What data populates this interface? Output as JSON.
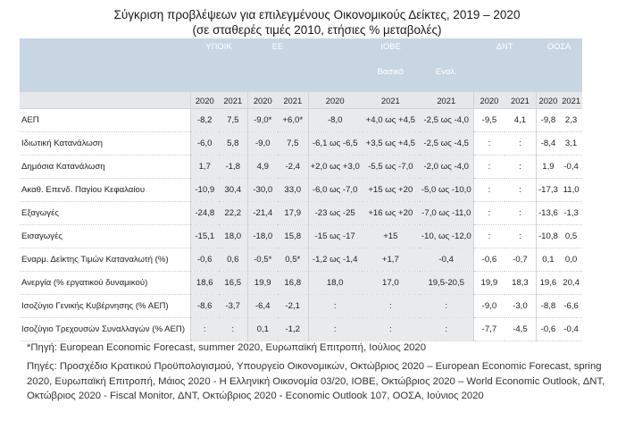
{
  "title": "Σύγκριση προβλέψεων για επιλεγμένους Οικονομικούς Δείκτες, 2019 – 2020",
  "subtitle": "(σε σταθερές τιμές 2010, ετήσιες % μεταβολές)",
  "table": {
    "groups": [
      "ΥΠΟΙΚ",
      "ΕΕ",
      "ΙΟΒΕ",
      "ΔΝΤ",
      "ΟΟΣΑ"
    ],
    "iobe_sub": [
      "Βασικό",
      "Εναλ."
    ],
    "years": [
      "2020",
      "2021",
      "2020",
      "2021",
      "2020",
      "2021",
      "2021",
      "2020",
      "2021",
      "2020",
      "2021"
    ],
    "rows": [
      {
        "label": "ΑΕΠ",
        "values": [
          "-8,2",
          "7,5",
          "-9,0*",
          "+6,0*",
          "-8,0",
          "+4,0 ως +4,5",
          "-2,5 ως -4,0",
          "-9,5",
          "4,1",
          "-9,8",
          "2,3"
        ]
      },
      {
        "label": "Ιδιωτική Κατανάλωση",
        "values": [
          "-6,0",
          "5,8",
          "-9,0",
          "7,5",
          "-6,1 ως -6,5",
          "+3,5 ως +4,5",
          "-2,5 ως -4,5",
          ":",
          ":",
          "-8,4",
          "3,1"
        ]
      },
      {
        "label": "Δημόσια Κατανάλωση",
        "values": [
          "1,7",
          "-1,8",
          "4,9",
          "-2,4",
          "+2,0 ως +3,0",
          "-5,5 ως -7,0",
          "-2,0 ως -4,0",
          ":",
          ":",
          "1,9",
          "-0,4"
        ]
      },
      {
        "label": "Ακαθ. Επενδ. Παγίου Κεφαλαίου",
        "values": [
          "-10,9",
          "30,4",
          "-30,0",
          "33,0",
          "-6,0 ως -7,0",
          "+15 ως +20",
          "-5,0 ως -10,0",
          ":",
          ":",
          "-17,3",
          "11,0"
        ]
      },
      {
        "label": "Εξαγωγές",
        "values": [
          "-24,8",
          "22,2",
          "-21,4",
          "17,9",
          "-23 ως -25",
          "+16 ως +20",
          "-7,0 ως -11,0",
          ":",
          ":",
          "-13,6",
          "-1,3"
        ]
      },
      {
        "label": "Εισαγωγές",
        "values": [
          "-15,1",
          "18,0",
          "-18,0",
          "15,8",
          "-15 ως -17",
          "+15",
          "-10, ως -12,0",
          ":",
          ":",
          "-10,8",
          "0,5"
        ]
      },
      {
        "label": "Εναρμ. Δείκτης Τιμών Καταναλωτή (%)",
        "values": [
          "-0,6",
          "0,6",
          "-0,5*",
          "0,5*",
          "-1,2 ως -1,4",
          "+1,7",
          "-0,4",
          "-0,6",
          "-0,7",
          "0,1",
          "0,0"
        ]
      },
      {
        "label": "Ανεργία (% εργατικού δυναμικού)",
        "values": [
          "18,6",
          "16,5",
          "19,9",
          "16,8",
          "18,0",
          "17,0",
          "19,5-20,5",
          "19,9",
          "18,3",
          "19,6",
          "20,4"
        ]
      },
      {
        "label": "Ισοζύγιο Γενικής Κυβέρνησης (% ΑΕΠ)",
        "values": [
          "-8,6",
          "-3,7",
          "-6,4",
          "-2,1",
          ":",
          ":",
          ":",
          "-9,0",
          "-3,0",
          "-8,8",
          "-6,6"
        ]
      },
      {
        "label": "Ισοζύγιο Τρεχουσών Συναλλαγών (% ΑΕΠ)",
        "values": [
          ":",
          ":",
          "0,1",
          "-1,2",
          ":",
          ":",
          ":",
          "-7,7",
          "-4,5",
          "-0,6",
          "-0,4"
        ]
      }
    ]
  },
  "notes": {
    "footnote": "*Πηγή: European Economic Forecast, summer 2020, Ευρωπαϊκή Επιτροπή, Ιούλιος 2020",
    "sources": "Πηγές: Προσχέδιο Κρατικού Προϋπολογισμού, Υπουργείο Οικονομικών, Οκτώβριος 2020 – European Economic Forecast, spring 2020, Ευρωπαϊκή Επιτροπή, Μάιος 2020 - Η Ελληνική Οικονομία 03/20, ΙΟΒΕ, Οκτώβριος 2020 – World Economic Outlook, ΔΝΤ, Οκτώβριος 2020 - Fiscal Monitor, ΔΝΤ, Οκτώβριος 2020 - Economic Outlook 107, ΟΟΣΑ, Ιούνιος 2020"
  }
}
